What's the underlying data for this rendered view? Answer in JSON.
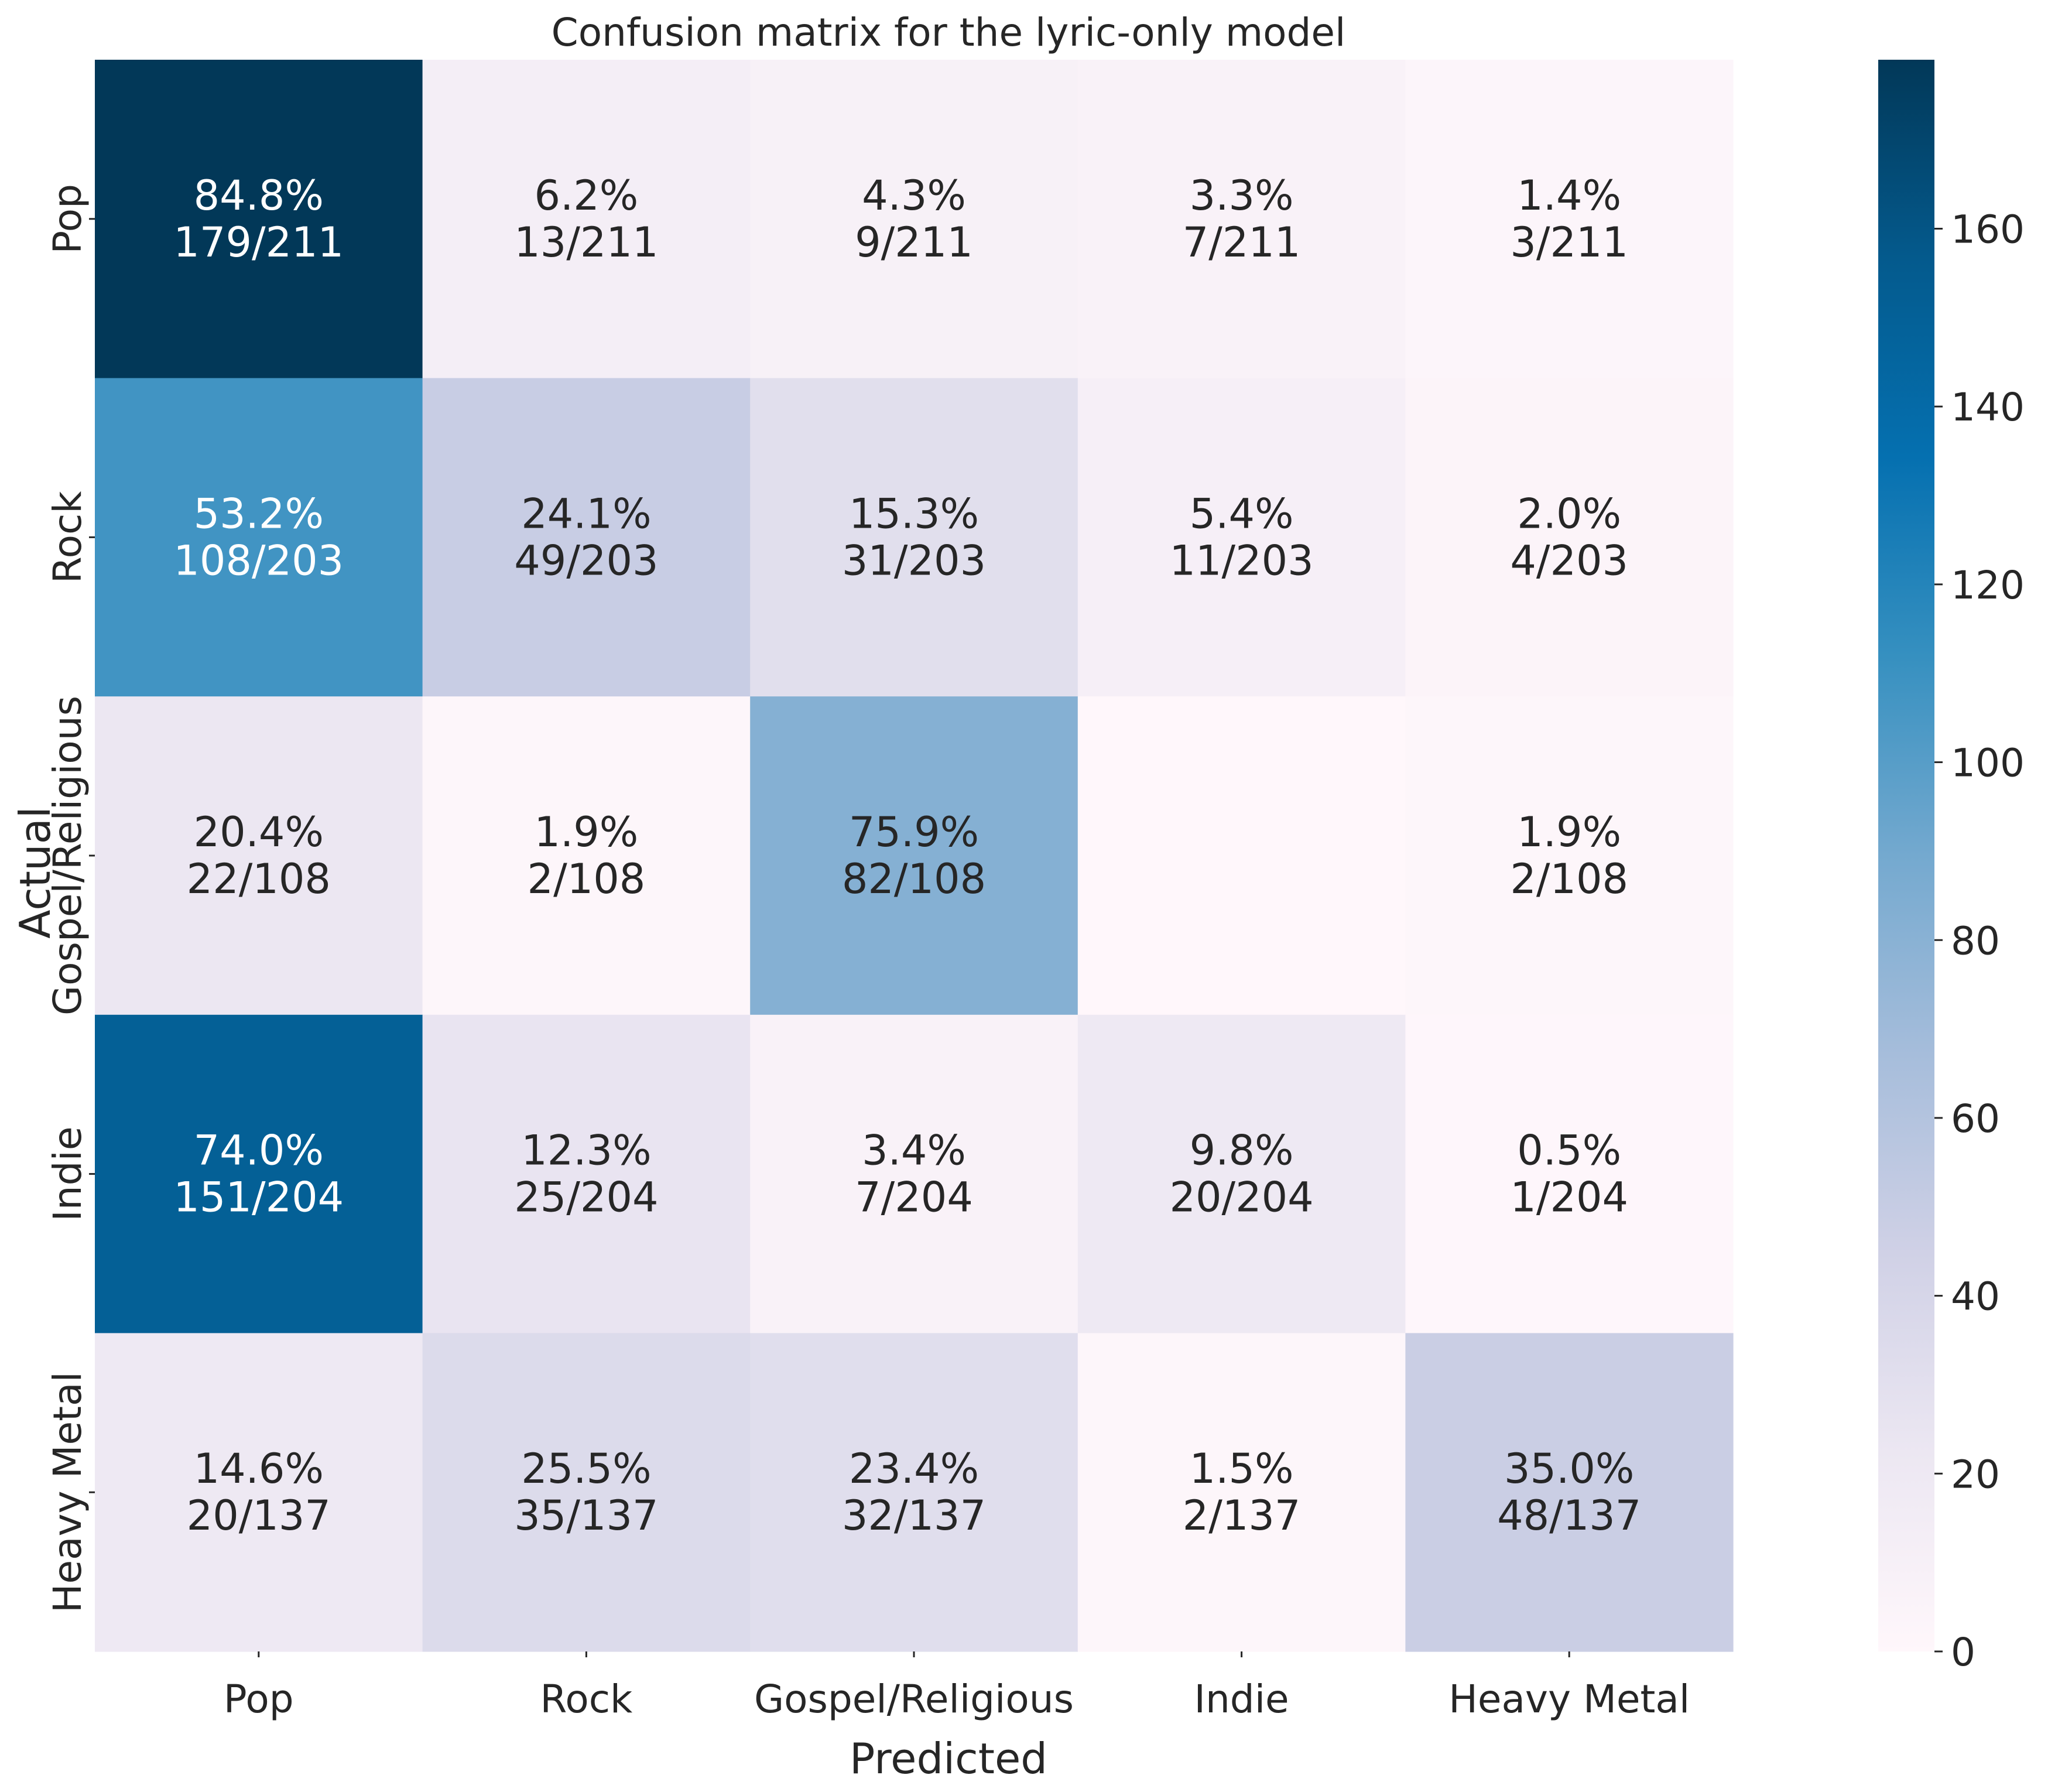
{
  "chart_data": {
    "type": "heatmap",
    "title": "Confusion matrix for the lyric-only model",
    "xlabel": "Predicted",
    "ylabel": "Actual",
    "x_categories": [
      "Pop",
      "Rock",
      "Gospel/Religious",
      "Indie",
      "Heavy Metal"
    ],
    "y_categories": [
      "Pop",
      "Rock",
      "Gospel/Religious",
      "Indie",
      "Heavy Metal"
    ],
    "counts": [
      [
        179,
        13,
        9,
        7,
        3
      ],
      [
        108,
        49,
        31,
        11,
        4
      ],
      [
        22,
        2,
        82,
        0,
        2
      ],
      [
        151,
        25,
        7,
        20,
        1
      ],
      [
        20,
        35,
        32,
        2,
        48
      ]
    ],
    "annotations": [
      [
        [
          "84.8%",
          "179/211"
        ],
        [
          "6.2%",
          "13/211"
        ],
        [
          "4.3%",
          "9/211"
        ],
        [
          "3.3%",
          "7/211"
        ],
        [
          "1.4%",
          "3/211"
        ]
      ],
      [
        [
          "53.2%",
          "108/203"
        ],
        [
          "24.1%",
          "49/203"
        ],
        [
          "15.3%",
          "31/203"
        ],
        [
          "5.4%",
          "11/203"
        ],
        [
          "2.0%",
          "4/203"
        ]
      ],
      [
        [
          "20.4%",
          "22/108"
        ],
        [
          "1.9%",
          "2/108"
        ],
        [
          "75.9%",
          "82/108"
        ],
        [
          "",
          ""
        ],
        [
          "1.9%",
          "2/108"
        ]
      ],
      [
        [
          "74.0%",
          "151/204"
        ],
        [
          "12.3%",
          "25/204"
        ],
        [
          "3.4%",
          "7/204"
        ],
        [
          "9.8%",
          "20/204"
        ],
        [
          "0.5%",
          "1/204"
        ]
      ],
      [
        [
          "14.6%",
          "20/137"
        ],
        [
          "25.5%",
          "35/137"
        ],
        [
          "23.4%",
          "32/137"
        ],
        [
          "1.5%",
          "2/137"
        ],
        [
          "35.0%",
          "48/137"
        ]
      ]
    ],
    "colorbar": {
      "vmin": 0,
      "vmax": 179,
      "ticks": [
        0,
        20,
        40,
        60,
        80,
        100,
        120,
        140,
        160
      ]
    },
    "colormap": [
      "#fff7fb",
      "#ece7f2",
      "#d0d1e6",
      "#a6bddb",
      "#74a9cf",
      "#3690c0",
      "#0570b0",
      "#045a8d",
      "#023858"
    ],
    "text_color_light": "#ffffff",
    "text_color_dark": "#262626",
    "grid": false
  }
}
